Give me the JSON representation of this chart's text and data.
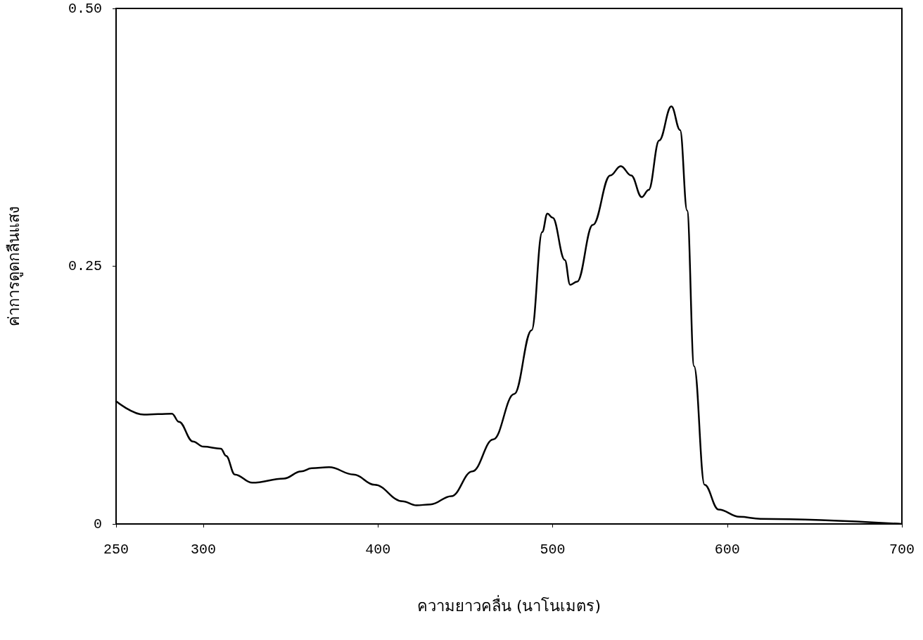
{
  "chart_data": {
    "type": "line",
    "xlabel": "ความยาวคลื่น (นาโนเมตร)",
    "ylabel": "ค่าการดูดกลืนแสง",
    "x": [
      250,
      266,
      282,
      286,
      294,
      300,
      310,
      313,
      318,
      328,
      346,
      356,
      362,
      372,
      386,
      398,
      414,
      422,
      430,
      442,
      454,
      466,
      478,
      488,
      494,
      497,
      500,
      507,
      510,
      514,
      523,
      533,
      539,
      545,
      551,
      555,
      561,
      568,
      573,
      577,
      581,
      587,
      595,
      607,
      619,
      700
    ],
    "series": [
      {
        "color": "#000000",
        "values": [
          0.119,
          0.106,
          0.107,
          0.099,
          0.08,
          0.075,
          0.073,
          0.066,
          0.048,
          0.04,
          0.044,
          0.051,
          0.054,
          0.055,
          0.048,
          0.038,
          0.022,
          0.018,
          0.019,
          0.027,
          0.051,
          0.082,
          0.126,
          0.188,
          0.283,
          0.301,
          0.297,
          0.256,
          0.232,
          0.235,
          0.29,
          0.338,
          0.347,
          0.338,
          0.317,
          0.324,
          0.372,
          0.405,
          0.382,
          0.304,
          0.153,
          0.038,
          0.014,
          0.007,
          0.005,
          0.0
        ]
      }
    ],
    "xlim": [
      250,
      700
    ],
    "xticks": [
      250,
      300,
      400,
      500,
      600,
      700
    ],
    "ylim": [
      0,
      0.5
    ],
    "yticks": [
      0,
      0.25,
      {
        "value": 0.5,
        "label": "0.50"
      }
    ],
    "grid": false,
    "marker": "none",
    "line_style": "solid"
  }
}
